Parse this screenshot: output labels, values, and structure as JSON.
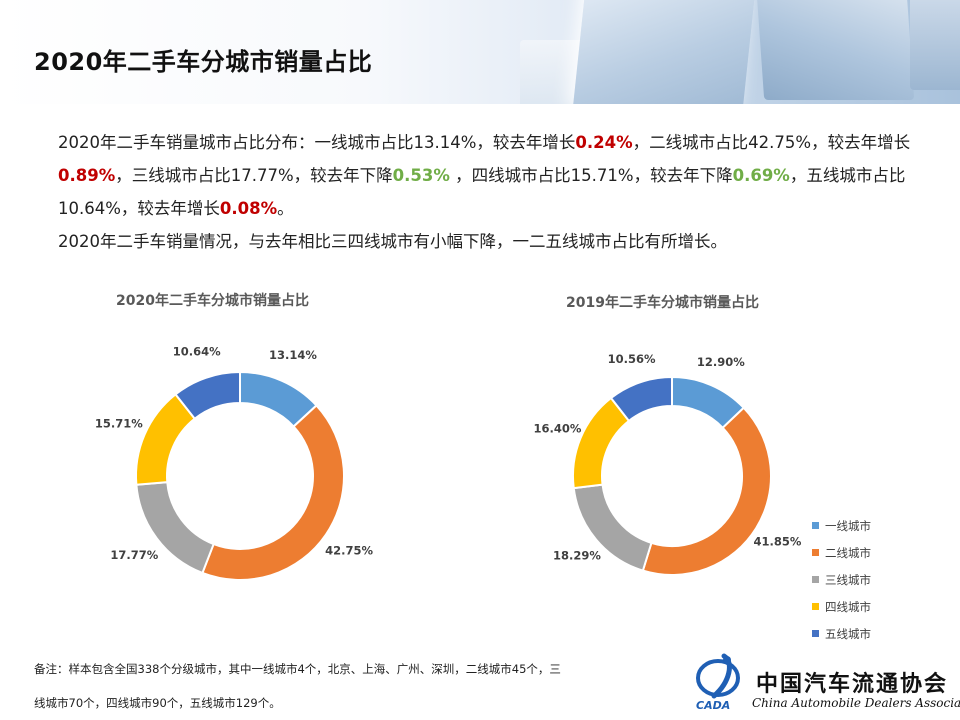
{
  "page": {
    "title": "2020年二手车分城市销量占比"
  },
  "description": {
    "p1_a": "2020年二手车销量城市占比分布：一线城市占比13.14%，较去年增长",
    "p1_b": "0.24%",
    "p1_c": "，二线城市占比42.75%，较去年增长",
    "p1_d": "0.89%",
    "p1_e": "，三线城市占比17.77%，较去年下降",
    "p1_f": "0.53%",
    "p1_g": " ，四线城市占比15.71%，较去年下降",
    "p1_h": "0.69%",
    "p1_i": "，五线城市占比10.64%，较去年增长",
    "p1_j": "0.08%",
    "p1_k": "。",
    "p2": "2020年二手车销量情况，与去年相比三四线城市有小幅下降，一二五线城市占比有所增长。",
    "up_color": "#c00000",
    "down_color": "#70ad47"
  },
  "chart_data": [
    {
      "type": "pie",
      "donut": true,
      "title": "2020年二手车分城市销量占比",
      "categories": [
        "一线城市",
        "二线城市",
        "三线城市",
        "四线城市",
        "五线城市"
      ],
      "values": [
        13.14,
        42.75,
        17.77,
        15.71,
        10.64
      ],
      "labels": [
        "13.14%",
        "42.75%",
        "17.77%",
        "15.71%",
        "10.64%"
      ]
    },
    {
      "type": "pie",
      "donut": true,
      "title": "2019年二手车分城市销量占比",
      "categories": [
        "一线城市",
        "二线城市",
        "三线城市",
        "四线城市",
        "五线城市"
      ],
      "values": [
        12.9,
        41.85,
        18.29,
        16.4,
        10.56
      ],
      "labels": [
        "12.90%",
        "41.85%",
        "18.29%",
        "16.40%",
        "10.56%"
      ]
    }
  ],
  "colors": [
    "#5b9bd5",
    "#ed7d31",
    "#a5a5a5",
    "#ffc000",
    "#4472c4"
  ],
  "legend": {
    "placement": "right",
    "items": [
      "一线城市",
      "二线城市",
      "三线城市",
      "四线城市",
      "五线城市"
    ]
  },
  "note": {
    "line1": "备注：样本包含全国338个分级城市，其中一线城市4个，北京、上海、广州、深圳，二线城市45个，三",
    "line2": "线城市70个，四线城市90个，五线城市129个。"
  },
  "logo": {
    "cn": "中国汽车流通协会",
    "en": "China Automobile Dealers Association",
    "mark": "CADA"
  }
}
